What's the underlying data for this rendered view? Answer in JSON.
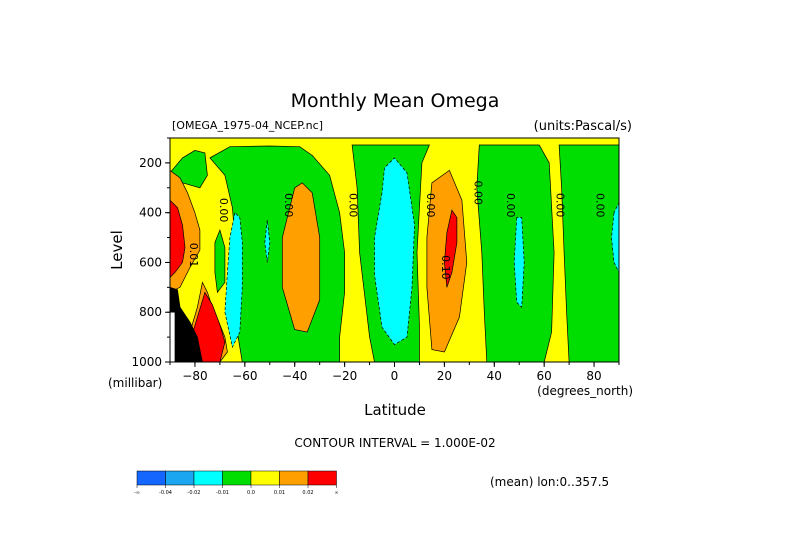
{
  "chart_data": {
    "type": "heatmap",
    "title": "Monthly Mean Omega",
    "subtitle_left": "[OMEGA_1975-04_NCEP.nc]",
    "subtitle_right": "(units:Pascal/s)",
    "xlabel": "Latitude",
    "x_units": "(degrees_north)",
    "ylabel": "Level",
    "y_units": "(millibar)",
    "xlim": [
      -90,
      90
    ],
    "ylim": [
      1000,
      100
    ],
    "y_inverted": true,
    "x_ticks": [
      -80,
      -60,
      -40,
      -20,
      0,
      20,
      40,
      60,
      80
    ],
    "y_ticks": [
      200,
      400,
      600,
      800,
      1000
    ],
    "footer_contour": "CONTOUR INTERVAL = 1.000E-02",
    "footer_mean": "(mean) lon:0..357.5",
    "colorbar": {
      "colors": [
        "#1466ff",
        "#1aa6f0",
        "#00ffff",
        "#00dd00",
        "#ffff00",
        "#ff9f00",
        "#ff0000"
      ],
      "labels": [
        "-∞",
        "-0.04",
        "-0.02",
        "-0.01",
        "0.0",
        "0.01",
        "0.02",
        "∞"
      ]
    },
    "background_color": "#ffff00",
    "regions": [
      {
        "color": "#00dd00",
        "poly": [
          [
            -61,
            1000
          ],
          [
            -63,
            880
          ],
          [
            -64,
            700
          ],
          [
            -64,
            500
          ],
          [
            -65,
            380
          ],
          [
            -68,
            250
          ],
          [
            -74,
            180
          ],
          [
            -66,
            135
          ],
          [
            -50,
            132
          ],
          [
            -38,
            135
          ],
          [
            -33,
            170
          ],
          [
            -26,
            250
          ],
          [
            -22,
            400
          ],
          [
            -20,
            560
          ],
          [
            -20,
            720
          ],
          [
            -22,
            900
          ],
          [
            -22,
            1000
          ]
        ]
      },
      {
        "color": "#00dd00",
        "poly": [
          [
            -17,
            128
          ],
          [
            -15,
            300
          ],
          [
            -14,
            560
          ],
          [
            -10,
            900
          ],
          [
            -8,
            1000
          ],
          [
            10,
            1000
          ],
          [
            10,
            850
          ],
          [
            9,
            560
          ],
          [
            11,
            200
          ],
          [
            14,
            128
          ]
        ]
      },
      {
        "color": "#00dd00",
        "poly": [
          [
            34,
            128
          ],
          [
            33,
            300
          ],
          [
            35,
            560
          ],
          [
            36,
            800
          ],
          [
            37,
            1000
          ],
          [
            60,
            1000
          ],
          [
            63,
            880
          ],
          [
            64,
            560
          ],
          [
            62,
            200
          ],
          [
            58,
            128
          ]
        ]
      },
      {
        "color": "#00dd00",
        "poly": [
          [
            66,
            128
          ],
          [
            67,
            300
          ],
          [
            68,
            560
          ],
          [
            69,
            800
          ],
          [
            70,
            1000
          ],
          [
            90,
            1000
          ],
          [
            90,
            128
          ]
        ]
      },
      {
        "color": "#00dd00",
        "poly": [
          [
            -90,
            240
          ],
          [
            -85,
            180
          ],
          [
            -80,
            150
          ],
          [
            -76,
            160
          ],
          [
            -75,
            250
          ],
          [
            -78,
            300
          ],
          [
            -85,
            280
          ]
        ]
      },
      {
        "color": "#00dd00",
        "poly": [
          [
            -72,
            520
          ],
          [
            -70,
            470
          ],
          [
            -68,
            540
          ],
          [
            -68,
            680
          ],
          [
            -71,
            720
          ],
          [
            -72,
            640
          ]
        ]
      },
      {
        "color": "#00ffff",
        "poly": [
          [
            -5,
            320
          ],
          [
            -8,
            500
          ],
          [
            -8,
            650
          ],
          [
            -5,
            860
          ],
          [
            0,
            930
          ],
          [
            5,
            900
          ],
          [
            7,
            700
          ],
          [
            8,
            450
          ],
          [
            5,
            240
          ],
          [
            0,
            180
          ],
          [
            -4,
            220
          ]
        ]
      },
      {
        "color": "#00ffff",
        "poly": [
          [
            -64,
            400
          ],
          [
            -66,
            500
          ],
          [
            -67,
            640
          ],
          [
            -68,
            800
          ],
          [
            -65,
            940
          ],
          [
            -62,
            880
          ],
          [
            -61,
            700
          ],
          [
            -61,
            520
          ],
          [
            -62,
            420
          ]
        ]
      },
      {
        "color": "#00ffff",
        "poly": [
          [
            49,
            420
          ],
          [
            48,
            600
          ],
          [
            49,
            760
          ],
          [
            51,
            780
          ],
          [
            52,
            600
          ],
          [
            51,
            420
          ]
        ]
      },
      {
        "color": "#00ffff",
        "poly": [
          [
            88,
            400
          ],
          [
            87,
            500
          ],
          [
            88,
            600
          ],
          [
            90,
            640
          ],
          [
            90,
            360
          ]
        ]
      },
      {
        "color": "#00ffff",
        "poly": [
          [
            -51,
            430
          ],
          [
            -52,
            520
          ],
          [
            -51,
            600
          ],
          [
            -50,
            520
          ]
        ]
      },
      {
        "color": "#ff9f00",
        "poly": [
          [
            -40,
            300
          ],
          [
            -45,
            500
          ],
          [
            -45,
            700
          ],
          [
            -40,
            870
          ],
          [
            -35,
            880
          ],
          [
            -30,
            750
          ],
          [
            -30,
            500
          ],
          [
            -33,
            320
          ],
          [
            -37,
            280
          ]
        ]
      },
      {
        "color": "#ff9f00",
        "poly": [
          [
            15,
            280
          ],
          [
            13,
            500
          ],
          [
            13,
            700
          ],
          [
            15,
            950
          ],
          [
            20,
            960
          ],
          [
            26,
            820
          ],
          [
            29,
            600
          ],
          [
            27,
            350
          ],
          [
            22,
            230
          ]
        ]
      },
      {
        "color": "#ff9f00",
        "poly": [
          [
            -90,
            230
          ],
          [
            -86,
            260
          ],
          [
            -83,
            320
          ],
          [
            -80,
            400
          ],
          [
            -78,
            470
          ],
          [
            -78,
            550
          ],
          [
            -82,
            620
          ],
          [
            -86,
            700
          ],
          [
            -90,
            720
          ]
        ]
      },
      {
        "color": "#ff9f00",
        "poly": [
          [
            -77,
            680
          ],
          [
            -75,
            720
          ],
          [
            -73,
            780
          ],
          [
            -70,
            850
          ],
          [
            -68,
            900
          ],
          [
            -67,
            960
          ],
          [
            -70,
            1000
          ],
          [
            -80,
            1000
          ],
          [
            -84,
            960
          ],
          [
            -82,
            880
          ],
          [
            -79,
            780
          ]
        ]
      },
      {
        "color": "#ff0000",
        "poly": [
          [
            23,
            390
          ],
          [
            21,
            480
          ],
          [
            20,
            600
          ],
          [
            21,
            700
          ],
          [
            23,
            640
          ],
          [
            25,
            520
          ],
          [
            25,
            420
          ]
        ]
      },
      {
        "color": "#ff0000",
        "poly": [
          [
            -90,
            350
          ],
          [
            -87,
            380
          ],
          [
            -85,
            450
          ],
          [
            -84,
            540
          ],
          [
            -85,
            600
          ],
          [
            -88,
            640
          ],
          [
            -90,
            660
          ]
        ]
      },
      {
        "color": "#ff0000",
        "poly": [
          [
            -76,
            720
          ],
          [
            -73,
            770
          ],
          [
            -70,
            850
          ],
          [
            -68,
            920
          ],
          [
            -70,
            1000
          ],
          [
            -79,
            1000
          ],
          [
            -82,
            920
          ],
          [
            -79,
            820
          ]
        ]
      },
      {
        "color": "#000000",
        "poly": [
          [
            -90,
            700
          ],
          [
            -87,
            710
          ],
          [
            -86,
            780
          ],
          [
            -82,
            840
          ],
          [
            -79,
            900
          ],
          [
            -77,
            1000
          ],
          [
            -90,
            1000
          ]
        ]
      },
      {
        "color": "#ffffff",
        "poly": [
          [
            -90,
            800
          ],
          [
            -88,
            800
          ],
          [
            -88,
            1000
          ],
          [
            -90,
            1000
          ]
        ]
      }
    ],
    "contour_labels": [
      {
        "text": "0.00",
        "lat": -70,
        "lev": 390
      },
      {
        "text": "0.00",
        "lat": -44,
        "lev": 370
      },
      {
        "text": "0.00",
        "lat": -18,
        "lev": 370
      },
      {
        "text": "0.00",
        "lat": 13,
        "lev": 370
      },
      {
        "text": "0.00",
        "lat": 32,
        "lev": 320
      },
      {
        "text": "0.00",
        "lat": 45,
        "lev": 370
      },
      {
        "text": "0.00",
        "lat": 65,
        "lev": 370
      },
      {
        "text": "0.00",
        "lat": 81,
        "lev": 370
      },
      {
        "text": "0.01",
        "lat": -82,
        "lev": 570
      },
      {
        "text": "0.10",
        "lat": 19,
        "lev": 620
      }
    ]
  }
}
